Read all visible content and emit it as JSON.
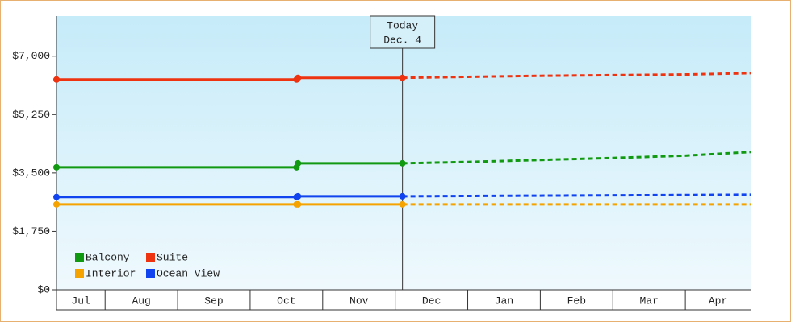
{
  "chart_data": {
    "type": "line",
    "categories_note_free": true,
    "x": [
      0.33,
      3.64,
      3.66,
      5.1,
      6,
      7,
      8,
      9,
      9.9
    ],
    "xlim": [
      0.33,
      9.9
    ],
    "xticks": [
      {
        "value": 0,
        "label": "Jul"
      },
      {
        "value": 1,
        "label": "Aug"
      },
      {
        "value": 2,
        "label": "Sep"
      },
      {
        "value": 3,
        "label": "Oct"
      },
      {
        "value": 4,
        "label": "Nov"
      },
      {
        "value": 5,
        "label": "Dec"
      },
      {
        "value": 6,
        "label": "Jan"
      },
      {
        "value": 7,
        "label": "Feb"
      },
      {
        "value": 8,
        "label": "Mar"
      },
      {
        "value": 9,
        "label": "Apr"
      }
    ],
    "ylim": [
      0,
      8200
    ],
    "yticks": [
      {
        "value": 0,
        "label": "$0"
      },
      {
        "value": 1750,
        "label": "$1,750"
      },
      {
        "value": 3500,
        "label": "$3,500"
      },
      {
        "value": 5250,
        "label": "$5,250"
      },
      {
        "value": 7000,
        "label": "$7,000"
      }
    ],
    "annotation": {
      "lines": [
        "Today",
        "Dec. 4"
      ],
      "x": 5.1
    },
    "series": [
      {
        "name": "Balcony",
        "color": "#119911",
        "values": [
          3670,
          3670,
          3790,
          3790,
          3830,
          3890,
          3950,
          4020,
          4130
        ]
      },
      {
        "name": "Suite",
        "color": "#ee3311",
        "values": [
          6300,
          6300,
          6350,
          6350,
          6380,
          6410,
          6430,
          6450,
          6490
        ]
      },
      {
        "name": "Interior",
        "color": "#f5a300",
        "values": [
          2560,
          2560,
          2560,
          2560,
          2560,
          2560,
          2560,
          2560,
          2560
        ]
      },
      {
        "name": "Ocean View",
        "color": "#1144ee",
        "values": [
          2780,
          2780,
          2800,
          2800,
          2810,
          2820,
          2830,
          2840,
          2850
        ]
      }
    ]
  }
}
